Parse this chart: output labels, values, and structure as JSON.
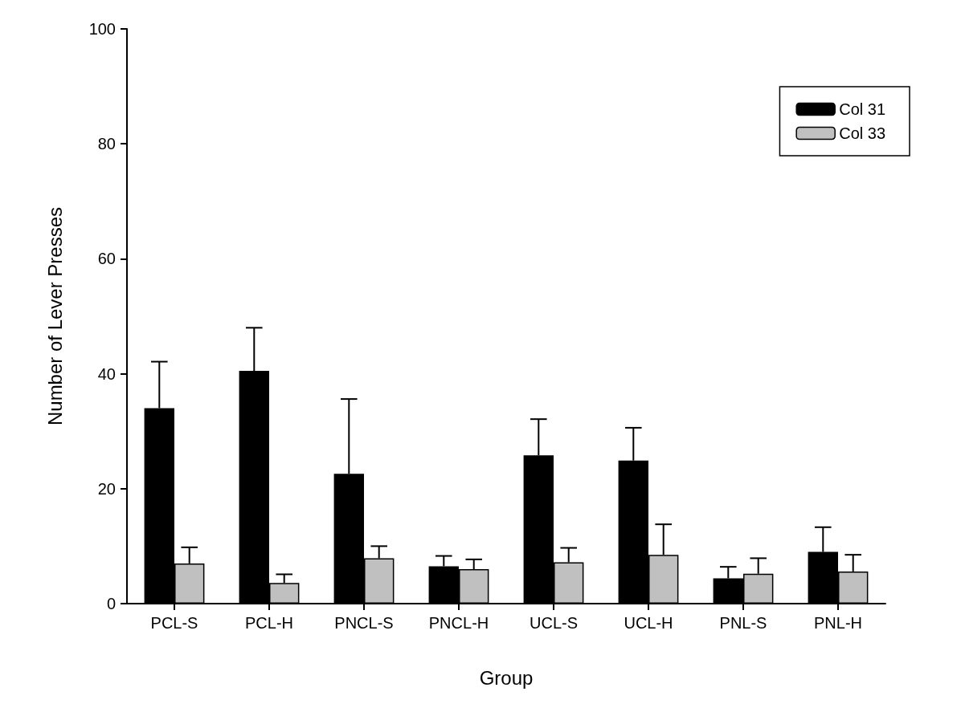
{
  "chart_data": {
    "type": "bar",
    "xlabel": "Group",
    "ylabel": "Number of Lever Presses",
    "categories": [
      "PCL-S",
      "PCL-H",
      "PNCL-S",
      "PNCL-H",
      "UCL-S",
      "UCL-H",
      "PNL-S",
      "PNL-H"
    ],
    "series": [
      {
        "name": "Col 31",
        "color": "#000000",
        "values": [
          34.0,
          40.5,
          22.6,
          6.5,
          25.8,
          24.9,
          4.4,
          9.0
        ],
        "errors": [
          [
            34.0,
            42.1
          ],
          [
            40.5,
            48.0
          ],
          [
            22.6,
            35.6
          ],
          [
            6.5,
            8.3
          ],
          [
            25.8,
            32.1
          ],
          [
            24.9,
            30.6
          ],
          [
            4.4,
            6.4
          ],
          [
            9.0,
            13.3
          ]
        ]
      },
      {
        "name": "Col 33",
        "color": "#c0c0c0",
        "values": [
          7.0,
          3.6,
          7.9,
          6.0,
          7.2,
          8.5,
          5.2,
          5.6
        ],
        "errors": [
          [
            7.0,
            9.8
          ],
          [
            3.6,
            5.1
          ],
          [
            7.9,
            10.0
          ],
          [
            6.0,
            7.7
          ],
          [
            7.2,
            9.7
          ],
          [
            8.5,
            13.8
          ],
          [
            5.2,
            7.9
          ],
          [
            5.6,
            8.5
          ]
        ]
      }
    ],
    "ylim": [
      0,
      100
    ],
    "yticks": [
      0,
      20,
      40,
      60,
      80,
      100
    ],
    "grid": false,
    "legend": "top right"
  }
}
